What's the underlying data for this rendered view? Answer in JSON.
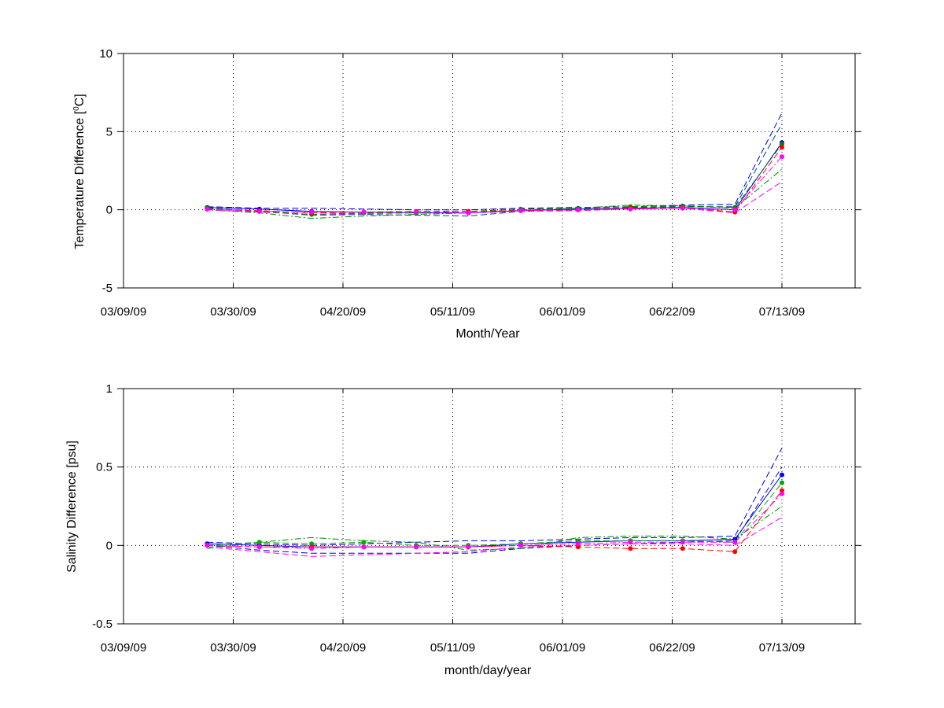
{
  "chart_data": [
    {
      "type": "line",
      "title": "",
      "xlabel": "Month/Year",
      "ylabel": "Temperature Difference [°C]",
      "ylabel_parts": {
        "before": "Temperature Difference [",
        "superscript": "0",
        "after": "C]"
      },
      "xlim": [
        "2009-03-09",
        "2009-07-27"
      ],
      "ylim": [
        -5,
        10
      ],
      "xticks": [
        "2009-03-09",
        "2009-03-30",
        "2009-04-20",
        "2009-05-11",
        "2009-06-01",
        "2009-06-22",
        "2009-07-13"
      ],
      "xtick_labels": [
        "03/09/09",
        "03/30/09",
        "04/20/09",
        "05/11/09",
        "06/01/09",
        "06/22/09",
        "07/13/09"
      ],
      "yticks": [
        -5,
        0,
        5,
        10
      ],
      "ytick_labels": [
        "-5",
        "0",
        "5",
        "10"
      ],
      "grid": true,
      "x": [
        "2009-03-25",
        "2009-04-04",
        "2009-04-14",
        "2009-04-24",
        "2009-05-04",
        "2009-05-14",
        "2009-05-24",
        "2009-06-04",
        "2009-06-14",
        "2009-06-24",
        "2009-07-04",
        "2009-07-13"
      ],
      "series": [
        {
          "color": "#0000ff",
          "dash": "solid",
          "marker": true,
          "values": [
            0.15,
            0.05,
            -0.1,
            -0.15,
            -0.2,
            -0.2,
            -0.05,
            0.05,
            0.1,
            0.15,
            0.0,
            4.3
          ]
        },
        {
          "color": "#008800",
          "dash": "dashed",
          "marker": true,
          "values": [
            0.1,
            -0.1,
            -0.3,
            -0.2,
            -0.2,
            -0.1,
            0.05,
            0.1,
            0.2,
            0.25,
            0.15,
            4.2
          ]
        },
        {
          "color": "#ff0000",
          "dash": "dashed",
          "marker": true,
          "values": [
            0.05,
            -0.05,
            -0.2,
            -0.15,
            -0.1,
            -0.1,
            -0.05,
            0.0,
            0.1,
            0.15,
            -0.15,
            4.0
          ]
        },
        {
          "color": "#ff00ff",
          "dash": "dashdot",
          "marker": true,
          "values": [
            0.05,
            -0.1,
            -0.15,
            -0.15,
            -0.15,
            -0.2,
            -0.05,
            0.0,
            0.05,
            0.1,
            0.0,
            3.4
          ]
        },
        {
          "color": "#0000cc",
          "dash": "dashed",
          "marker": false,
          "values": [
            0.2,
            0.1,
            0.1,
            0.05,
            0.0,
            0.0,
            0.1,
            0.15,
            0.2,
            0.3,
            0.35,
            6.2
          ]
        },
        {
          "color": "#004488",
          "dash": "dashed",
          "marker": false,
          "values": [
            0.1,
            -0.1,
            -0.35,
            -0.3,
            -0.35,
            -0.4,
            -0.1,
            0.0,
            0.15,
            0.2,
            0.2,
            5.5
          ]
        },
        {
          "color": "#008800",
          "dash": "dashdot",
          "marker": false,
          "values": [
            0.0,
            -0.2,
            -0.55,
            -0.4,
            -0.3,
            -0.2,
            0.0,
            0.1,
            0.3,
            0.25,
            0.1,
            2.6
          ]
        },
        {
          "color": "#ff00ff",
          "dash": "dashed",
          "marker": false,
          "values": [
            0.0,
            -0.15,
            -0.3,
            -0.25,
            -0.2,
            -0.2,
            -0.1,
            -0.05,
            0.05,
            0.1,
            -0.2,
            1.8
          ]
        }
      ]
    },
    {
      "type": "line",
      "title": "",
      "xlabel": "month/day/year",
      "ylabel": "Salinity Difference [psu]",
      "xlim": [
        "2009-03-09",
        "2009-07-27"
      ],
      "ylim": [
        -0.5,
        1
      ],
      "xticks": [
        "2009-03-09",
        "2009-03-30",
        "2009-04-20",
        "2009-05-11",
        "2009-06-01",
        "2009-06-22",
        "2009-07-13"
      ],
      "xtick_labels": [
        "03/09/09",
        "03/30/09",
        "04/20/09",
        "05/11/09",
        "06/01/09",
        "06/22/09",
        "07/13/09"
      ],
      "yticks": [
        -0.5,
        0,
        0.5,
        1
      ],
      "ytick_labels": [
        "-0.5",
        "0",
        "0.5",
        "1"
      ],
      "grid": true,
      "x": [
        "2009-03-25",
        "2009-04-04",
        "2009-04-14",
        "2009-04-24",
        "2009-05-04",
        "2009-05-14",
        "2009-05-24",
        "2009-06-04",
        "2009-06-14",
        "2009-06-24",
        "2009-07-04",
        "2009-07-13"
      ],
      "series": [
        {
          "color": "#0000ff",
          "dash": "solid",
          "marker": true,
          "values": [
            0.01,
            0.0,
            -0.01,
            -0.01,
            -0.01,
            -0.01,
            0.01,
            0.02,
            0.03,
            0.03,
            0.04,
            0.45
          ]
        },
        {
          "color": "#00aa00",
          "dash": "dashed",
          "marker": true,
          "values": [
            0.0,
            0.02,
            0.01,
            0.02,
            0.0,
            0.0,
            0.01,
            0.03,
            0.03,
            0.03,
            0.02,
            0.4
          ]
        },
        {
          "color": "#ff0000",
          "dash": "dashed",
          "marker": true,
          "values": [
            0.0,
            -0.01,
            -0.01,
            -0.01,
            -0.01,
            -0.01,
            0.0,
            -0.01,
            -0.02,
            -0.02,
            -0.04,
            0.35
          ]
        },
        {
          "color": "#ff00ff",
          "dash": "dashdot",
          "marker": true,
          "values": [
            0.0,
            -0.01,
            -0.02,
            -0.01,
            -0.01,
            -0.01,
            0.0,
            0.01,
            0.02,
            0.02,
            0.02,
            0.33
          ]
        },
        {
          "color": "#0000cc",
          "dash": "dashed",
          "marker": false,
          "values": [
            0.02,
            0.01,
            0.0,
            0.01,
            0.02,
            0.03,
            0.03,
            0.04,
            0.05,
            0.05,
            0.06,
            0.62
          ]
        },
        {
          "color": "#0000cc",
          "dash": "dashed",
          "marker": false,
          "values": [
            0.0,
            -0.03,
            -0.05,
            -0.05,
            -0.05,
            -0.05,
            -0.02,
            0.0,
            0.01,
            0.02,
            0.03,
            0.5
          ]
        },
        {
          "color": "#008800",
          "dash": "dashdot",
          "marker": false,
          "values": [
            -0.02,
            0.02,
            0.05,
            0.03,
            0.02,
            -0.03,
            -0.02,
            0.05,
            0.06,
            0.06,
            0.04,
            0.25
          ]
        },
        {
          "color": "#ff00ff",
          "dash": "dashed",
          "marker": false,
          "values": [
            -0.01,
            -0.04,
            -0.07,
            -0.06,
            -0.05,
            -0.04,
            -0.01,
            0.0,
            0.01,
            0.01,
            0.0,
            0.18
          ]
        }
      ]
    }
  ]
}
